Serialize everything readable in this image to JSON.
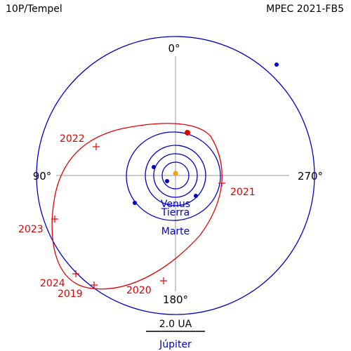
{
  "header": {
    "object": "10P/Tempel",
    "source": "MPEC 2021-FB5"
  },
  "angles": {
    "top": "0°",
    "left": "90°",
    "right": "270°",
    "bottom": "180°"
  },
  "years": {
    "y2019": "2019",
    "y2020": "2020",
    "y2021": "2021",
    "y2022": "2022",
    "y2023": "2023",
    "y2024": "2024"
  },
  "planets": {
    "venus": "Venus",
    "earth": "Tierra",
    "mars": "Marte",
    "jupiter": "Júpiter"
  },
  "scale": {
    "label": "2.0 UA"
  },
  "colors": {
    "comet": "#e00000",
    "planets": "#0000cc",
    "sun": "#f0a000",
    "axes": "#999999"
  }
}
